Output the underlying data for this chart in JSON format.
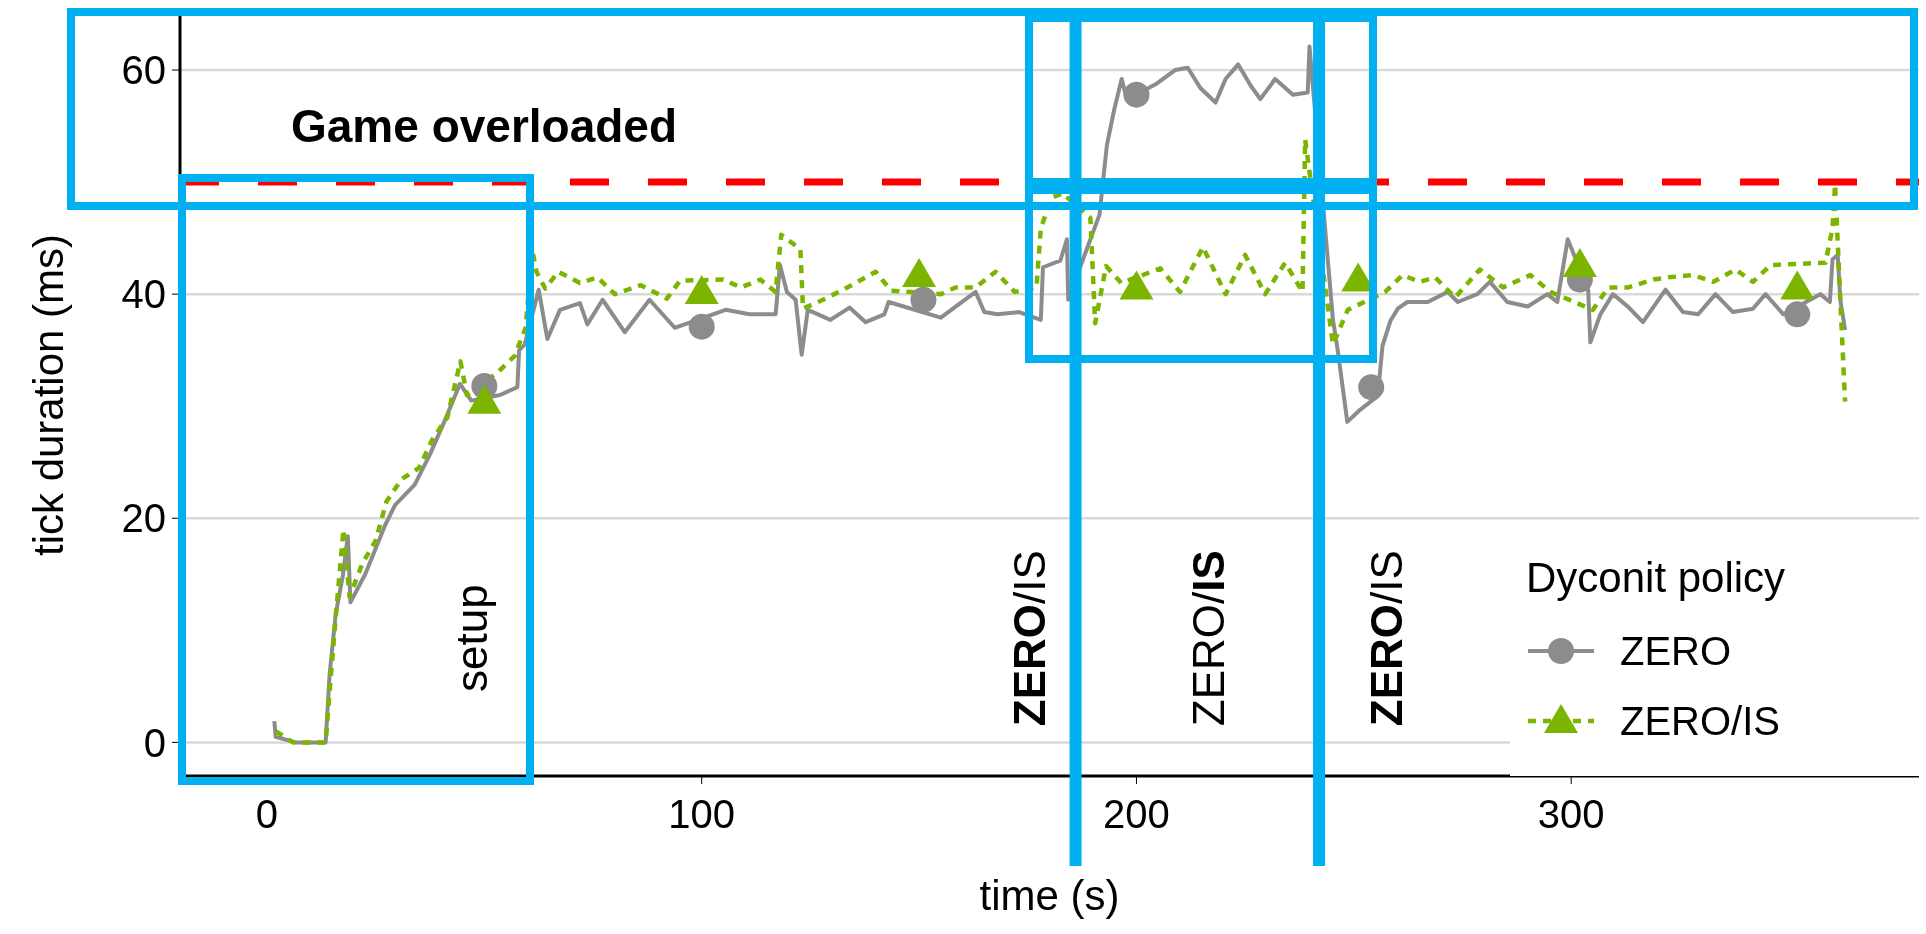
{
  "chart_data": {
    "type": "line",
    "xlabel": "time (s)",
    "ylabel": "tick duration (ms)",
    "legend_title": "Dyconit policy",
    "legend": "bottom right",
    "grid": "y",
    "xlim": [
      -20,
      380
    ],
    "xticks": [
      0,
      100,
      200,
      300
    ],
    "ylim": [
      -3,
      65
    ],
    "yticks": [
      0,
      20,
      40,
      60
    ],
    "series": [
      {
        "name": "ZERO",
        "color": "#8c8c8c",
        "line_style": "solid",
        "x": [
          1.7,
          2,
          6.6,
          13.5,
          14.4,
          15.8,
          17.5,
          18.6,
          19.2,
          22.6,
          27.2,
          29.5,
          34,
          37.5,
          41,
          44.4,
          47,
          53.6,
          57.6,
          58,
          59.3,
          62.5,
          64.5,
          67.4,
          72,
          73.7,
          77.2,
          82.3,
          88,
          93.8,
          105.5,
          111,
          117,
          118,
          119.6,
          121.6,
          123,
          124.4,
          129.6,
          134,
          137.7,
          142,
          143,
          155,
          163,
          165,
          168,
          173,
          178,
          178.5,
          182.5,
          184,
          184.3,
          191.5,
          193.2,
          194.9,
          196.6,
          197.8,
          204.3,
          208.9,
          211.8,
          214.7,
          218.2,
          220.5,
          223.4,
          226.3,
          228.5,
          231.9,
          236,
          239.4,
          239.8,
          245.2,
          246.3,
          248.5,
          251.5,
          255.5,
          256.6,
          258.4,
          260.1,
          262.3,
          267,
          271.6,
          273.9,
          278.4,
          281.3,
          285.3,
          290,
          294.5,
          296.8,
          299.2,
          303.9,
          304.4,
          306.7,
          309.6,
          313,
          316.5,
          321.7,
          325.7,
          329.2,
          333.2,
          337.2,
          341.8,
          344.7,
          348.8,
          357.3,
          359.5,
          360.1,
          361.3,
          361.9,
          363
        ],
        "values": [
          1.9,
          0.5,
          0,
          0,
          6,
          11.4,
          15,
          18.4,
          12.5,
          15,
          19.4,
          21.2,
          23,
          25.7,
          28.8,
          32,
          30.5,
          31,
          31.7,
          35,
          35.5,
          40.4,
          36,
          38.6,
          39.2,
          37.3,
          39.5,
          36.6,
          39.5,
          37,
          38.6,
          38.2,
          38.2,
          42.6,
          40.2,
          39.5,
          34.6,
          38.6,
          37.7,
          38.8,
          37.5,
          38.2,
          39.3,
          37.9,
          40.2,
          38.4,
          38.2,
          38.4,
          37.7,
          42.4,
          43,
          44.9,
          39.5,
          47.1,
          53.3,
          56.5,
          59.2,
          57.4,
          58.7,
          60,
          60.2,
          58.4,
          57.1,
          59.2,
          60.5,
          58.6,
          57.4,
          59.2,
          57.8,
          58,
          62.1,
          37.7,
          35,
          28.6,
          29.7,
          30.9,
          35.4,
          37.6,
          38.7,
          39.3,
          39.3,
          40.2,
          39.3,
          40,
          41.1,
          39.3,
          38.9,
          40,
          39.3,
          44.9,
          40.4,
          35.7,
          38.2,
          40,
          38.9,
          37.5,
          40.4,
          38.4,
          38.2,
          40,
          38.4,
          38.7,
          40,
          38.2,
          40,
          39.3,
          43.1,
          43.5,
          39.5,
          36.8
        ]
      },
      {
        "name": "ZERO/IS",
        "color": "#7cb500",
        "line_style": "dotted",
        "x": [
          2,
          6,
          13.5,
          14.5,
          16,
          17.6,
          19,
          22,
          25,
          27.5,
          31,
          35,
          38,
          41.5,
          44.5,
          46,
          53,
          57,
          59.5,
          61,
          62,
          64,
          67,
          72,
          76,
          80,
          86,
          92,
          95,
          105,
          109,
          113.5,
          117,
          118.3,
          122.7,
          123.3,
          128.5,
          134,
          140,
          143.6,
          155,
          158.4,
          163,
          167.6,
          172,
          177,
          178,
          180.5,
          183,
          189.4,
          190.5,
          193,
          196.5,
          205.5,
          210,
          215.3,
          220.5,
          225,
          229.6,
          234.2,
          238.2,
          238.8,
          245.2,
          248.6,
          257.2,
          261.2,
          265.2,
          268.7,
          273.3,
          279,
          284.3,
          290.6,
          295.2,
          305,
          308.5,
          313.1,
          318.9,
          322.3,
          328,
          332.7,
          337.8,
          341.8,
          345.9,
          358.5,
          360.1,
          360.7,
          361.9,
          363
        ],
        "values": [
          1,
          0,
          0,
          5,
          12,
          19,
          13,
          16,
          18,
          21.5,
          23.5,
          24.5,
          27,
          29,
          34,
          31,
          33,
          34.5,
          37,
          44,
          42,
          40.5,
          42,
          41,
          41.5,
          40,
          40.8,
          39.6,
          41.2,
          41.3,
          40.6,
          41.3,
          40.2,
          45.3,
          44,
          38.7,
          39.6,
          40.7,
          42,
          40.3,
          40,
          40.6,
          40.6,
          42,
          40.2,
          40.6,
          45.9,
          48.6,
          49,
          46.8,
          37.4,
          42.5,
          41,
          42.3,
          40.2,
          44.2,
          40,
          43.5,
          40,
          42.8,
          40.2,
          53.8,
          35.5,
          38.6,
          40.2,
          41.7,
          41.1,
          41.5,
          39.7,
          42.2,
          40.6,
          41.7,
          40.2,
          38.6,
          40.6,
          40.6,
          41.3,
          41.5,
          41.7,
          41.1,
          42.2,
          41.1,
          42.6,
          42.8,
          45.9,
          49.8,
          39.5,
          30.4
        ]
      },
      {
        "type": "scatter",
        "color": "#8c8c8c",
        "marker": "circle",
        "x": [
          50,
          100,
          151,
          200,
          254,
          302,
          352
        ],
        "values": [
          31.8,
          37.1,
          39.5,
          57.8,
          31.7,
          41.3,
          38.2
        ]
      },
      {
        "type": "scatter",
        "color": "#7cb500",
        "marker": "triangle",
        "x": [
          50,
          100,
          150,
          200,
          251,
          302,
          352
        ],
        "values": [
          30.4,
          40.2,
          41.7,
          40.6,
          41.3,
          42.6,
          40.6
        ]
      }
    ],
    "ref_lines": [
      {
        "axis": "y",
        "value": 50,
        "label": "Game overloaded",
        "color": "#ff0000",
        "line_style": "dashed"
      },
      {
        "axis": "x",
        "value": 186,
        "color": "#00b0f0",
        "line_style": "solid"
      },
      {
        "axis": "x",
        "value": 242,
        "color": "#00b0f0",
        "line_style": "solid"
      }
    ],
    "annotations": [
      "setup",
      "ZERO/IS",
      "ZERO/IS",
      "ZERO/IS"
    ]
  }
}
